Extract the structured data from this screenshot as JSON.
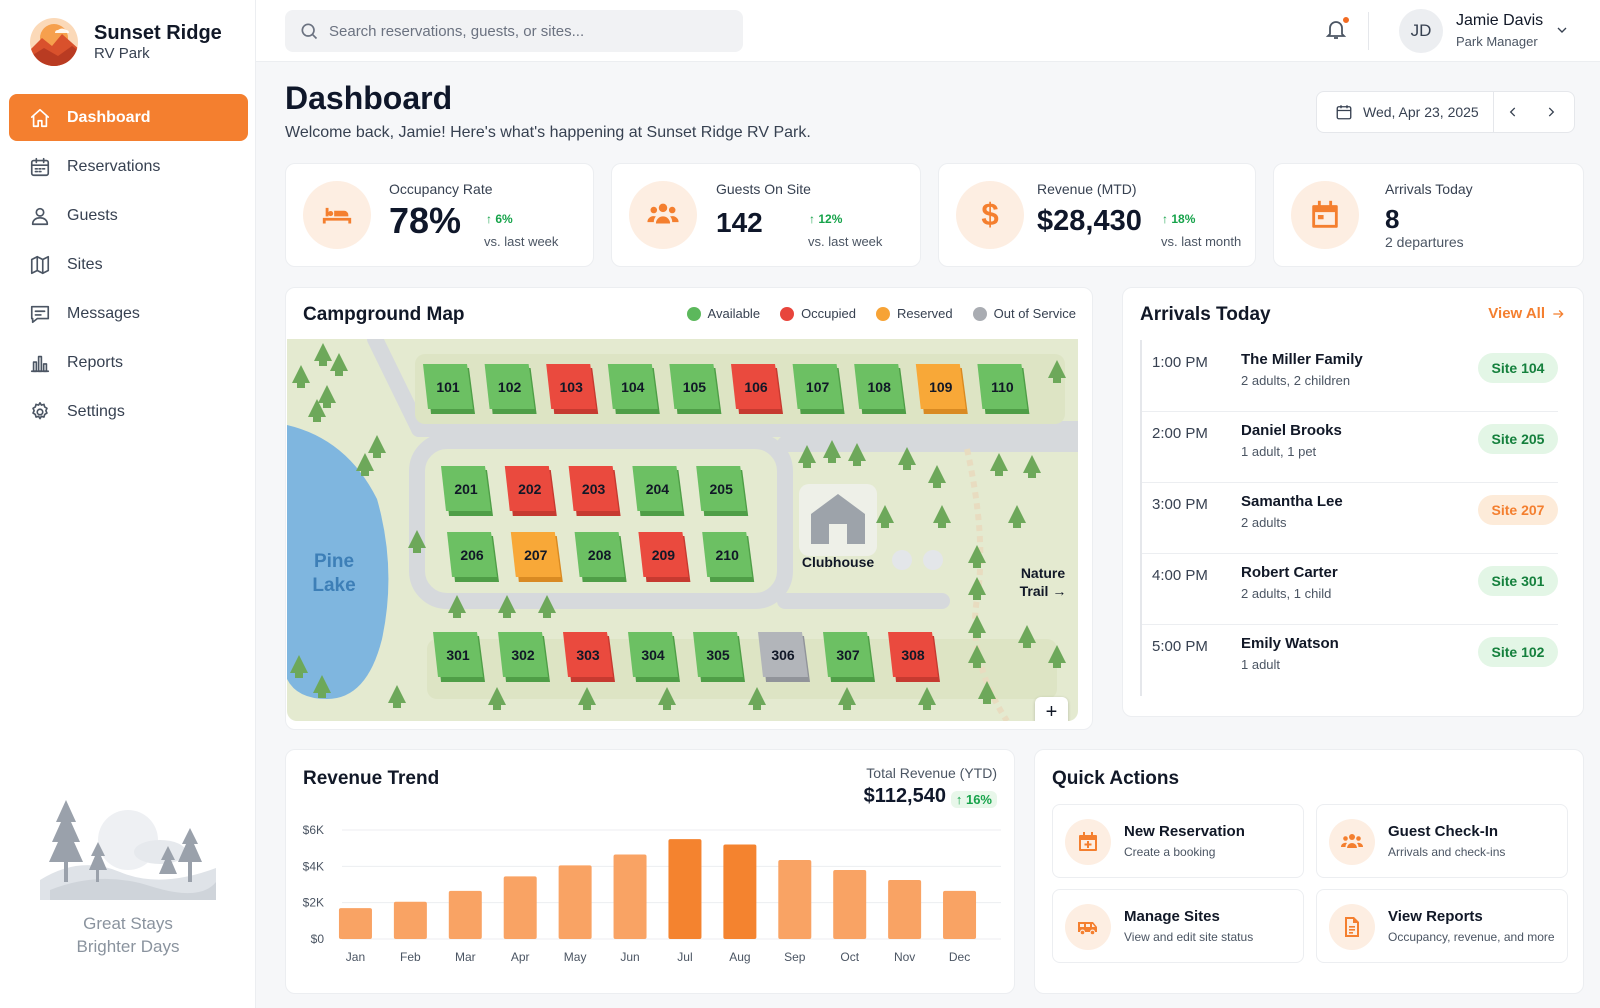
{
  "brand": {
    "name": "Sunset Ridge",
    "sub": "RV Park"
  },
  "sidebar": {
    "items": [
      {
        "label": "Dashboard",
        "icon": "home-icon",
        "active": true
      },
      {
        "label": "Reservations",
        "icon": "calendar-icon"
      },
      {
        "label": "Guests",
        "icon": "user-icon"
      },
      {
        "label": "Sites",
        "icon": "map-icon"
      },
      {
        "label": "Messages",
        "icon": "message-icon"
      },
      {
        "label": "Reports",
        "icon": "bar-chart-icon"
      },
      {
        "label": "Settings",
        "icon": "gear-icon"
      }
    ],
    "tagline_1": "Great Stays",
    "tagline_2": "Brighter Days"
  },
  "topbar": {
    "search_placeholder": "Search reservations, guests, or sites...",
    "user_initials": "JD",
    "user_name": "Jamie Davis",
    "user_role": "Park Manager"
  },
  "header": {
    "title": "Dashboard",
    "subtitle": "Welcome back, Jamie! Here's what's happening at Sunset Ridge RV Park.",
    "date": "Wed, Apr 23, 2025"
  },
  "stats": {
    "occupancy": {
      "label": "Occupancy Rate",
      "value": "78%",
      "trend": "6%",
      "note": "vs. last week"
    },
    "guests": {
      "label": "Guests On Site",
      "value": "142",
      "trend": "12%",
      "note": "vs. last week"
    },
    "revenue": {
      "label": "Revenue (MTD)",
      "value": "$28,430",
      "trend": "18%",
      "note": "vs. last month"
    },
    "arrivals": {
      "label": "Arrivals Today",
      "value": "8",
      "note": "2 departures"
    }
  },
  "map": {
    "title": "Campground Map",
    "legend": [
      {
        "label": "Available",
        "color": "#5cb85c"
      },
      {
        "label": "Occupied",
        "color": "#e8453c"
      },
      {
        "label": "Reserved",
        "color": "#f7a336"
      },
      {
        "label": "Out of Service",
        "color": "#a9acb2"
      }
    ],
    "lake_line1": "Pine",
    "lake_line2": "Lake",
    "clubhouse": "Clubhouse",
    "trail_line1": "Nature",
    "trail_line2": "Trail →",
    "zoom_in": "+",
    "zoom_out": "−",
    "sites": [
      {
        "id": "101",
        "status": "available"
      },
      {
        "id": "102",
        "status": "available"
      },
      {
        "id": "103",
        "status": "occupied"
      },
      {
        "id": "104",
        "status": "available"
      },
      {
        "id": "105",
        "status": "available"
      },
      {
        "id": "106",
        "status": "occupied"
      },
      {
        "id": "107",
        "status": "available"
      },
      {
        "id": "108",
        "status": "available"
      },
      {
        "id": "109",
        "status": "reserved"
      },
      {
        "id": "110",
        "status": "available"
      },
      {
        "id": "201",
        "status": "available"
      },
      {
        "id": "202",
        "status": "occupied"
      },
      {
        "id": "203",
        "status": "occupied"
      },
      {
        "id": "204",
        "status": "available"
      },
      {
        "id": "205",
        "status": "available"
      },
      {
        "id": "206",
        "status": "available"
      },
      {
        "id": "207",
        "status": "reserved"
      },
      {
        "id": "208",
        "status": "available"
      },
      {
        "id": "209",
        "status": "occupied"
      },
      {
        "id": "210",
        "status": "available"
      },
      {
        "id": "301",
        "status": "available"
      },
      {
        "id": "302",
        "status": "available"
      },
      {
        "id": "303",
        "status": "occupied"
      },
      {
        "id": "304",
        "status": "available"
      },
      {
        "id": "305",
        "status": "available"
      },
      {
        "id": "306",
        "status": "out-of-service"
      },
      {
        "id": "307",
        "status": "available"
      },
      {
        "id": "308",
        "status": "occupied"
      }
    ]
  },
  "arrivals": {
    "title": "Arrivals Today",
    "view_all": "View All",
    "rows": [
      {
        "time": "1:00 PM",
        "name": "The Miller Family",
        "detail": "2 adults, 2 children",
        "site": "Site 104",
        "status": "green"
      },
      {
        "time": "2:00 PM",
        "name": "Daniel Brooks",
        "detail": "1 adult, 1 pet",
        "site": "Site 205",
        "status": "green"
      },
      {
        "time": "3:00 PM",
        "name": "Samantha Lee",
        "detail": "2 adults",
        "site": "Site 207",
        "status": "orange"
      },
      {
        "time": "4:00 PM",
        "name": "Robert Carter",
        "detail": "2 adults, 1 child",
        "site": "Site 301",
        "status": "green"
      },
      {
        "time": "5:00 PM",
        "name": "Emily Watson",
        "detail": "1 adult",
        "site": "Site 102",
        "status": "green"
      }
    ]
  },
  "revenue": {
    "title": "Revenue Trend",
    "total_label": "Total Revenue (YTD)",
    "total": "$112,540",
    "trend": "16%"
  },
  "chart_data": {
    "type": "bar",
    "categories": [
      "Jan",
      "Feb",
      "Mar",
      "Apr",
      "May",
      "Jun",
      "Jul",
      "Aug",
      "Sep",
      "Oct",
      "Nov",
      "Dec"
    ],
    "values": [
      1700,
      2050,
      2650,
      3450,
      4050,
      4650,
      5500,
      5200,
      4350,
      3800,
      3250,
      2650
    ],
    "highlight": [
      "Jul",
      "Aug"
    ],
    "yticks": [
      "$0",
      "$2K",
      "$4K",
      "$6K"
    ],
    "ylim": [
      0,
      6000
    ],
    "color": "#f9a364",
    "highlight_color": "#f4832f",
    "grid": true
  },
  "quick_actions": {
    "title": "Quick Actions",
    "items": [
      {
        "title": "New Reservation",
        "sub": "Create a booking",
        "icon": "calendar-plus-icon"
      },
      {
        "title": "Guest Check-In",
        "sub": "Arrivals and check-ins",
        "icon": "users-icon"
      },
      {
        "title": "Manage Sites",
        "sub": "View and edit site status",
        "icon": "rv-icon"
      },
      {
        "title": "View Reports",
        "sub": "Occupancy, revenue, and more",
        "icon": "document-icon"
      }
    ]
  }
}
